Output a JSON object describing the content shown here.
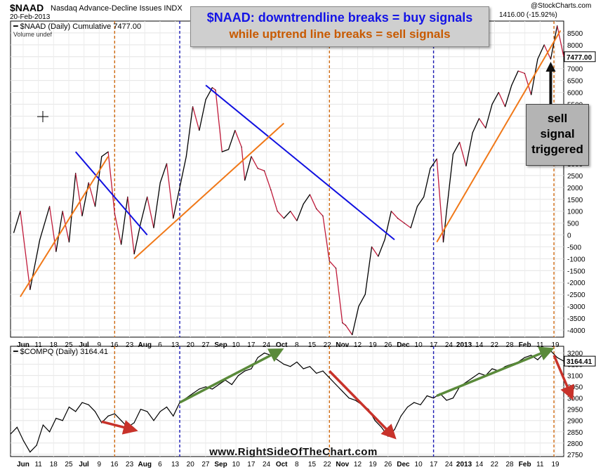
{
  "header": {
    "symbol": "$NAAD",
    "name": "Nasdaq Advance-Decline Issues  INDX",
    "date": "20-Feb-2013",
    "brand": "@StockCharts.com",
    "quote": "1416.00 (-15.92%)"
  },
  "annotation": {
    "line1": "$NAAD: downtrendline breaks = buy signals",
    "line2": "while uptrend line breaks = sell signals"
  },
  "callout": {
    "line1": "sell",
    "line2": "signal",
    "line3": "triggered"
  },
  "watermark": "www.RightSideOfTheChart.com",
  "colors": {
    "naad_line": "#c01a3a",
    "downtrend_line": "#1010e0",
    "uptrend_line": "#f07818",
    "vline_orange": "#d06a10",
    "vline_blue": "#1a1ab4",
    "arrow_green": "#5a8a3a",
    "arrow_red": "#c8322a"
  },
  "chart_data": [
    {
      "type": "line",
      "panel": "top",
      "title": "$NAAD (Daily) Cumulative 7477.00",
      "subtitle": "Volume undef",
      "last_value_label": "7477.00",
      "ylim": [
        -4300,
        9000
      ],
      "yticks": [
        -4000,
        -3500,
        -3000,
        -2500,
        -2000,
        -1500,
        -1000,
        -500,
        0,
        500,
        1000,
        1500,
        2000,
        2500,
        3000,
        3500,
        4000,
        4500,
        5000,
        5500,
        6000,
        6500,
        7000,
        7500,
        8000,
        8500
      ],
      "x_labels": [
        "Jun",
        "11",
        "18",
        "25",
        "Jul",
        "9",
        "16",
        "23",
        "Aug",
        "6",
        "13",
        "20",
        "27",
        "Sep",
        "10",
        "17",
        "24",
        "Oct",
        "8",
        "15",
        "22",
        "Nov",
        "12",
        "19",
        "26",
        "Dec",
        "10",
        "17",
        "24",
        "2013",
        "14",
        "22",
        "28",
        "Feb",
        "11",
        "19"
      ],
      "points": [
        [
          1,
          100
        ],
        [
          3,
          1000
        ],
        [
          6,
          -2300
        ],
        [
          9,
          -200
        ],
        [
          12,
          1200
        ],
        [
          14,
          -700
        ],
        [
          16,
          1000
        ],
        [
          18,
          -300
        ],
        [
          20,
          2600
        ],
        [
          22,
          800
        ],
        [
          24,
          2200
        ],
        [
          26,
          1200
        ],
        [
          28,
          3300
        ],
        [
          30,
          3500
        ],
        [
          32,
          900
        ],
        [
          34,
          -400
        ],
        [
          36,
          1600
        ],
        [
          38,
          -800
        ],
        [
          40,
          500
        ],
        [
          42,
          1600
        ],
        [
          44,
          300
        ],
        [
          46,
          2200
        ],
        [
          48,
          3000
        ],
        [
          50,
          700
        ],
        [
          52,
          2000
        ],
        [
          54,
          3300
        ],
        [
          56,
          5400
        ],
        [
          58,
          4400
        ],
        [
          60,
          5700
        ],
        [
          62,
          6200
        ],
        [
          63,
          6100
        ],
        [
          65,
          3500
        ],
        [
          67,
          3600
        ],
        [
          69,
          4400
        ],
        [
          71,
          3700
        ],
        [
          72,
          2300
        ],
        [
          74,
          3300
        ],
        [
          76,
          2800
        ],
        [
          78,
          2700
        ],
        [
          80,
          1900
        ],
        [
          82,
          1000
        ],
        [
          84,
          700
        ],
        [
          86,
          1000
        ],
        [
          88,
          600
        ],
        [
          90,
          1300
        ],
        [
          92,
          1700
        ],
        [
          94,
          1100
        ],
        [
          96,
          800
        ],
        [
          98,
          -1100
        ],
        [
          100,
          -1400
        ],
        [
          102,
          -3700
        ],
        [
          103,
          -3800
        ],
        [
          105,
          -4200
        ],
        [
          107,
          -3000
        ],
        [
          109,
          -2500
        ],
        [
          111,
          -500
        ],
        [
          113,
          -900
        ],
        [
          115,
          -200
        ],
        [
          117,
          1000
        ],
        [
          119,
          700
        ],
        [
          121,
          500
        ],
        [
          123,
          300
        ],
        [
          125,
          1200
        ],
        [
          127,
          1600
        ],
        [
          129,
          2800
        ],
        [
          131,
          3200
        ],
        [
          133,
          -300
        ],
        [
          134,
          1000
        ],
        [
          136,
          3400
        ],
        [
          138,
          3900
        ],
        [
          140,
          2900
        ],
        [
          142,
          4300
        ],
        [
          144,
          4900
        ],
        [
          146,
          4500
        ],
        [
          148,
          5500
        ],
        [
          150,
          6000
        ],
        [
          152,
          5400
        ],
        [
          154,
          6300
        ],
        [
          156,
          6900
        ],
        [
          158,
          6800
        ],
        [
          160,
          5900
        ],
        [
          162,
          7400
        ],
        [
          164,
          8000
        ],
        [
          166,
          7400
        ],
        [
          168,
          8800
        ],
        [
          170,
          7500
        ]
      ],
      "vlines": [
        {
          "x": 32,
          "style": "orange-dashed"
        },
        {
          "x": 52,
          "style": "blue-dashed"
        },
        {
          "x": 98,
          "style": "orange-dashed"
        },
        {
          "x": 130,
          "style": "blue-dashed"
        },
        {
          "x": 167,
          "style": "orange-dashed"
        }
      ]
    },
    {
      "type": "line",
      "panel": "bottom",
      "title": "$COMPQ (Daily) 3164.41",
      "last_value_label": "3164.41",
      "ylim": [
        2740,
        3230
      ],
      "yticks": [
        2750,
        2800,
        2850,
        2900,
        2950,
        3000,
        3050,
        3100,
        3150,
        3200
      ],
      "x_labels": [
        "Jun",
        "11",
        "18",
        "25",
        "Jul",
        "9",
        "16",
        "23",
        "Aug",
        "6",
        "13",
        "20",
        "27",
        "Sep",
        "10",
        "17",
        "24",
        "Oct",
        "8",
        "15",
        "22",
        "Nov",
        "12",
        "19",
        "26",
        "Dec",
        "10",
        "17",
        "24",
        "2013",
        "14",
        "22",
        "28",
        "Feb",
        "11",
        "19"
      ],
      "points": [
        [
          0,
          2840
        ],
        [
          2,
          2870
        ],
        [
          4,
          2810
        ],
        [
          6,
          2760
        ],
        [
          8,
          2790
        ],
        [
          10,
          2880
        ],
        [
          12,
          2850
        ],
        [
          14,
          2910
        ],
        [
          16,
          2900
        ],
        [
          18,
          2960
        ],
        [
          20,
          2940
        ],
        [
          22,
          2980
        ],
        [
          24,
          2970
        ],
        [
          26,
          2940
        ],
        [
          28,
          2890
        ],
        [
          30,
          2920
        ],
        [
          32,
          2930
        ],
        [
          34,
          2900
        ],
        [
          36,
          2870
        ],
        [
          38,
          2890
        ],
        [
          40,
          2950
        ],
        [
          42,
          2940
        ],
        [
          44,
          2900
        ],
        [
          46,
          2940
        ],
        [
          48,
          2960
        ],
        [
          50,
          2920
        ],
        [
          52,
          2980
        ],
        [
          54,
          3000
        ],
        [
          56,
          3020
        ],
        [
          58,
          3040
        ],
        [
          60,
          3050
        ],
        [
          62,
          3040
        ],
        [
          64,
          3060
        ],
        [
          66,
          3080
        ],
        [
          68,
          3060
        ],
        [
          70,
          3100
        ],
        [
          72,
          3120
        ],
        [
          74,
          3130
        ],
        [
          76,
          3180
        ],
        [
          78,
          3200
        ],
        [
          80,
          3190
        ],
        [
          82,
          3170
        ],
        [
          84,
          3150
        ],
        [
          86,
          3140
        ],
        [
          88,
          3160
        ],
        [
          90,
          3130
        ],
        [
          92,
          3140
        ],
        [
          94,
          3110
        ],
        [
          96,
          3120
        ],
        [
          98,
          3090
        ],
        [
          100,
          3060
        ],
        [
          102,
          3030
        ],
        [
          104,
          3000
        ],
        [
          106,
          2990
        ],
        [
          108,
          2970
        ],
        [
          110,
          2950
        ],
        [
          112,
          2900
        ],
        [
          114,
          2870
        ],
        [
          116,
          2830
        ],
        [
          118,
          2860
        ],
        [
          120,
          2920
        ],
        [
          122,
          2960
        ],
        [
          124,
          2980
        ],
        [
          126,
          2970
        ],
        [
          128,
          3010
        ],
        [
          130,
          3000
        ],
        [
          132,
          3020
        ],
        [
          134,
          2990
        ],
        [
          136,
          3000
        ],
        [
          138,
          3050
        ],
        [
          140,
          3070
        ],
        [
          142,
          3090
        ],
        [
          144,
          3110
        ],
        [
          146,
          3100
        ],
        [
          148,
          3130
        ],
        [
          150,
          3120
        ],
        [
          152,
          3140
        ],
        [
          154,
          3150
        ],
        [
          156,
          3160
        ],
        [
          158,
          3180
        ],
        [
          160,
          3190
        ],
        [
          162,
          3170
        ],
        [
          164,
          3200
        ],
        [
          166,
          3210
        ],
        [
          168,
          3180
        ],
        [
          170,
          3164
        ]
      ],
      "vlines": [
        {
          "x": 32,
          "style": "orange-dashed"
        },
        {
          "x": 52,
          "style": "blue-dashed"
        },
        {
          "x": 98,
          "style": "orange-dashed"
        },
        {
          "x": 130,
          "style": "blue-dashed"
        },
        {
          "x": 167,
          "style": "orange-dashed"
        }
      ]
    }
  ]
}
